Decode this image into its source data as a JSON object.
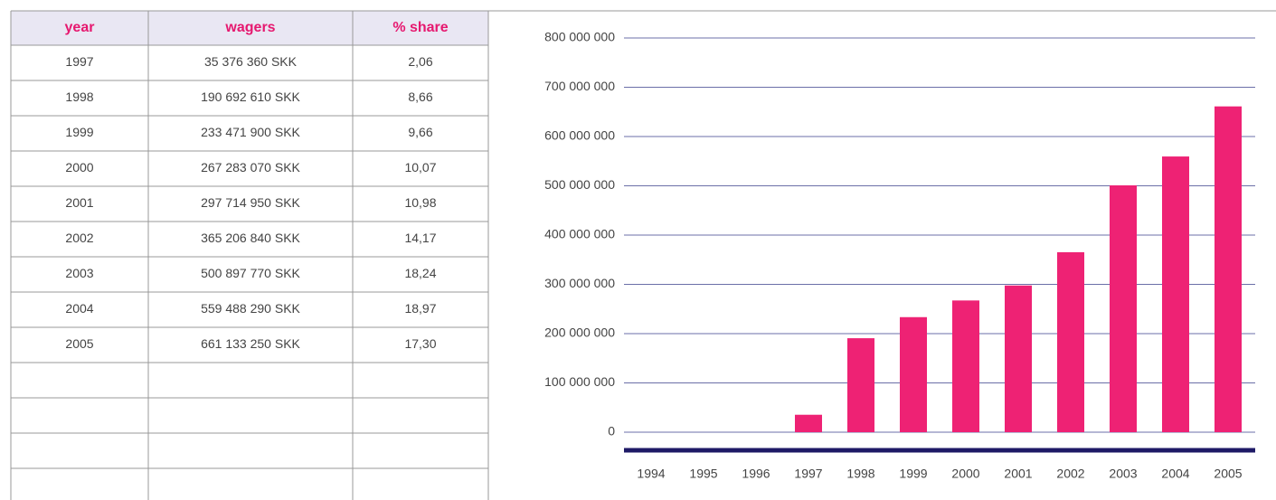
{
  "table": {
    "header": [
      "year",
      "wagers",
      "% share"
    ],
    "rows": [
      [
        "1997",
        "35 376 360 SKK",
        "2,06"
      ],
      [
        "1998",
        "190 692 610 SKK",
        "8,66"
      ],
      [
        "1999",
        "233 471 900 SKK",
        "9,66"
      ],
      [
        "2000",
        "267 283 070 SKK",
        "10,07"
      ],
      [
        "2001",
        "297 714 950 SKK",
        "10,98"
      ],
      [
        "2002",
        "365 206 840 SKK",
        "14,17"
      ],
      [
        "2003",
        "500 897 770 SKK",
        "18,24"
      ],
      [
        "2004",
        "559 488 290 SKK",
        "18,97"
      ],
      [
        "2005",
        "661 133 250 SKK",
        "17,30"
      ]
    ]
  },
  "chart_data": {
    "type": "bar",
    "categories": [
      "1994",
      "1995",
      "1996",
      "1997",
      "1998",
      "1999",
      "2000",
      "2001",
      "2002",
      "2003",
      "2004",
      "2005"
    ],
    "values": [
      null,
      null,
      null,
      35376360,
      190692610,
      233471900,
      267283070,
      297714950,
      365206840,
      500897770,
      559488290,
      661133250
    ],
    "color": "#ee2274",
    "ylim": [
      0,
      800000000
    ],
    "yticks": [
      0,
      {
        "value": 100000000,
        "label": "100 000 000"
      },
      {
        "value": 200000000,
        "label": "200 000 000"
      },
      {
        "value": 300000000,
        "label": "300 000 000"
      },
      {
        "value": 400000000,
        "label": "400 000 000"
      },
      {
        "value": 500000000,
        "label": "500 000 000"
      },
      {
        "value": 600000000,
        "label": "600 000 000"
      },
      {
        "value": 700000000,
        "label": "700 000 000"
      },
      {
        "value": 800000000,
        "label": "800 000 000"
      }
    ],
    "grid": true
  }
}
